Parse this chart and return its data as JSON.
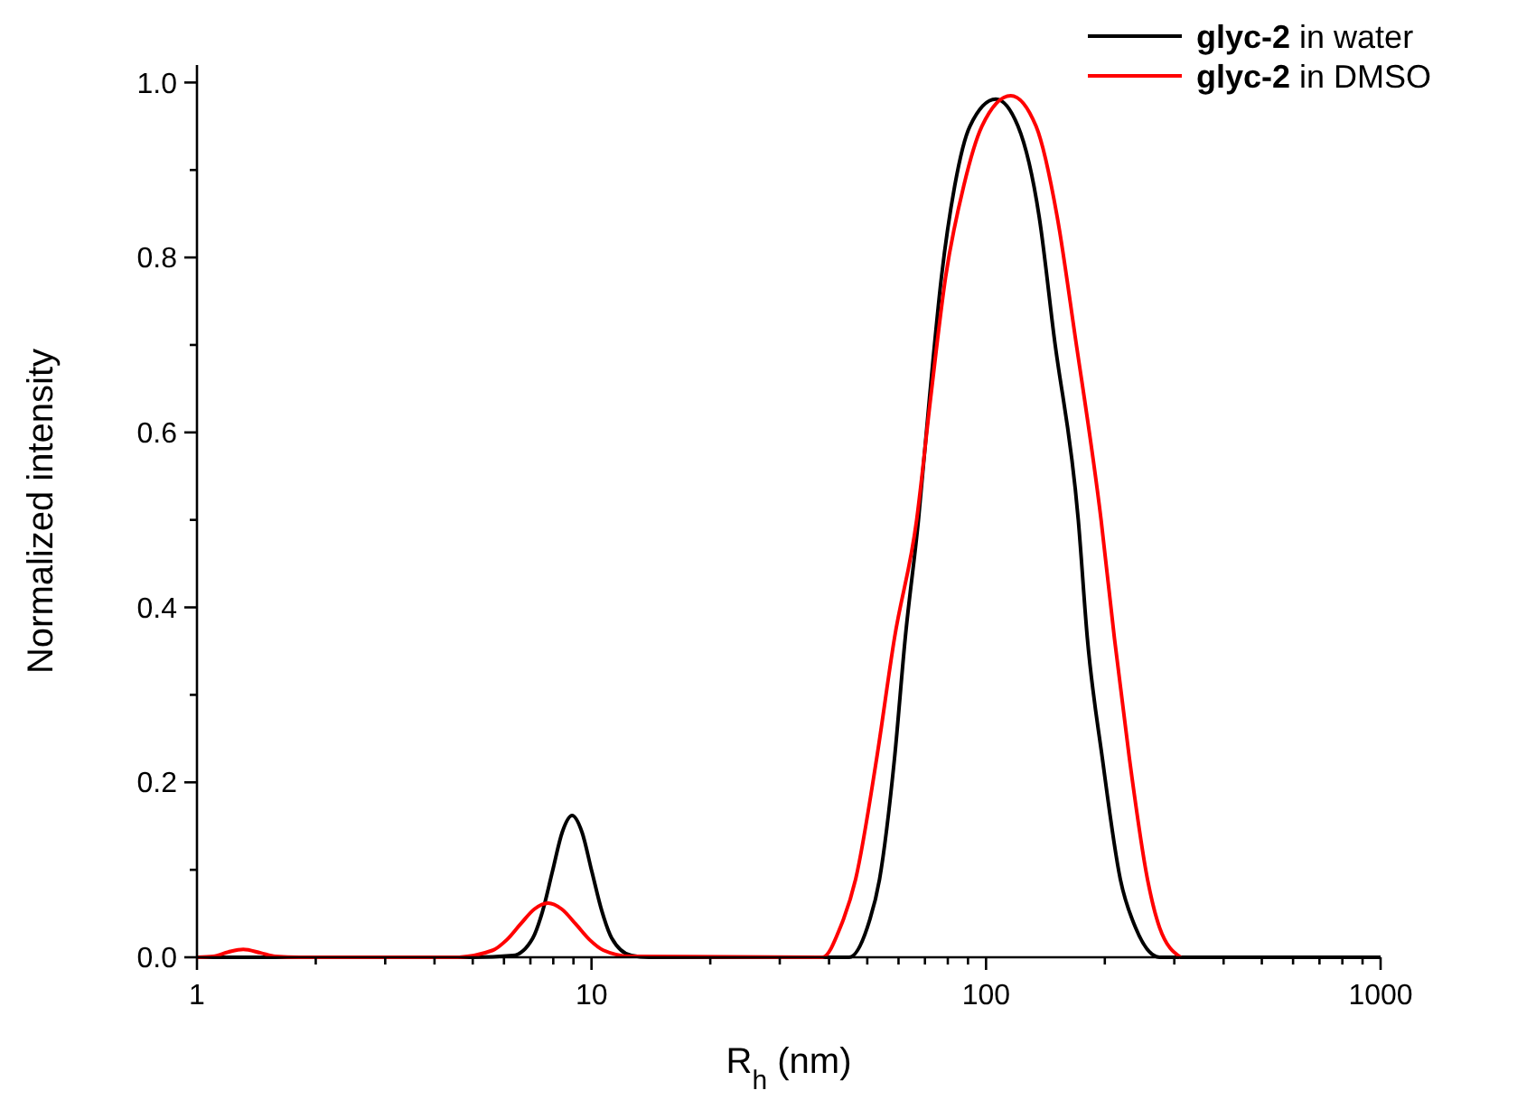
{
  "chart_data": {
    "type": "line",
    "xlabel": "R$_{h}$ (nm)",
    "ylabel": "Normalized intensity",
    "log": "x",
    "xlim": [
      1,
      1000
    ],
    "ylim": [
      0,
      1.02
    ],
    "xticks": [
      1,
      {
        "value": 2,
        "label": null
      },
      {
        "value": 3,
        "label": null
      },
      {
        "value": 4,
        "label": null
      },
      {
        "value": 5,
        "label": null
      },
      {
        "value": 6,
        "label": null
      },
      {
        "value": 7,
        "label": null
      },
      {
        "value": 8,
        "label": null
      },
      {
        "value": 9,
        "label": null
      },
      10,
      {
        "value": 20,
        "label": null
      },
      {
        "value": 30,
        "label": null
      },
      {
        "value": 40,
        "label": null
      },
      {
        "value": 50,
        "label": null
      },
      {
        "value": 60,
        "label": null
      },
      {
        "value": 70,
        "label": null
      },
      {
        "value": 80,
        "label": null
      },
      {
        "value": 90,
        "label": null
      },
      100,
      {
        "value": 200,
        "label": null
      },
      {
        "value": 300,
        "label": null
      },
      {
        "value": 400,
        "label": null
      },
      {
        "value": 500,
        "label": null
      },
      {
        "value": 600,
        "label": null
      },
      {
        "value": 700,
        "label": null
      },
      {
        "value": 800,
        "label": null
      },
      {
        "value": 900,
        "label": null
      },
      1000
    ],
    "yticks": [
      {
        "value": 0,
        "label": "0.0"
      },
      {
        "value": 0.1,
        "label": null
      },
      {
        "value": 0.2,
        "label": "0.2"
      },
      {
        "value": 0.3,
        "label": null
      },
      {
        "value": 0.4,
        "label": "0.4"
      },
      {
        "value": 0.5,
        "label": null
      },
      {
        "value": 0.6,
        "label": "0.6"
      },
      {
        "value": 0.7,
        "label": null
      },
      {
        "value": 0.8,
        "label": "0.8"
      },
      {
        "value": 0.9,
        "label": null
      },
      {
        "value": 1,
        "label": "1.0"
      }
    ],
    "grid": false,
    "legend": "top right",
    "marker": "none",
    "line_style": "solid",
    "series": [
      {
        "name": "glyc-2 in water",
        "color": "#000000",
        "x": [
          1,
          5,
          6.32,
          7.1,
          7.52,
          7.96,
          8.43,
          8.93,
          9.46,
          10.02,
          10.62,
          11.25,
          12.62,
          14,
          40,
          45,
          50,
          53.7,
          58.6,
          62.4,
          67.4,
          71.9,
          77.1,
          83.3,
          91.0,
          105.8,
          120.5,
          136.3,
          148.8,
          171.3,
          180.6,
          197.2,
          219.0,
          239.2,
          275.3,
          1000
        ],
        "values": [
          0,
          0,
          0.002,
          0.022,
          0.053,
          0.098,
          0.143,
          0.162,
          0.143,
          0.098,
          0.053,
          0.022,
          0.002,
          0,
          0,
          0,
          0.034,
          0.089,
          0.227,
          0.365,
          0.5,
          0.64,
          0.778,
          0.882,
          0.95,
          0.981,
          0.95,
          0.847,
          0.709,
          0.5,
          0.365,
          0.227,
          0.089,
          0.034,
          0,
          0
        ]
      },
      {
        "name": "glyc-2 in DMSO",
        "color": "#ff0000",
        "x": [
          1,
          1.1,
          1.2,
          1.31,
          1.45,
          1.58,
          1.82,
          4.5,
          5.62,
          6.1,
          6.61,
          7.16,
          7.76,
          8.41,
          9.12,
          9.89,
          10.72,
          12.59,
          38.5,
          42.7,
          46.7,
          52.8,
          58.6,
          66.7,
          72.4,
          79.0,
          87.8,
          97.6,
          115.5,
          133.9,
          151.4,
          168.3,
          195.7,
          211.5,
          230.9,
          256.6,
          275.3,
          311.2
        ],
        "values": [
          0,
          0.001,
          0.006,
          0.009,
          0.005,
          0.001,
          0,
          0,
          0.008,
          0.02,
          0.038,
          0.055,
          0.062,
          0.055,
          0.038,
          0.02,
          0.008,
          0.001,
          0,
          0.034,
          0.089,
          0.227,
          0.365,
          0.5,
          0.64,
          0.778,
          0.882,
          0.95,
          0.985,
          0.95,
          0.847,
          0.709,
          0.5,
          0.365,
          0.227,
          0.089,
          0.034,
          0
        ]
      }
    ]
  }
}
